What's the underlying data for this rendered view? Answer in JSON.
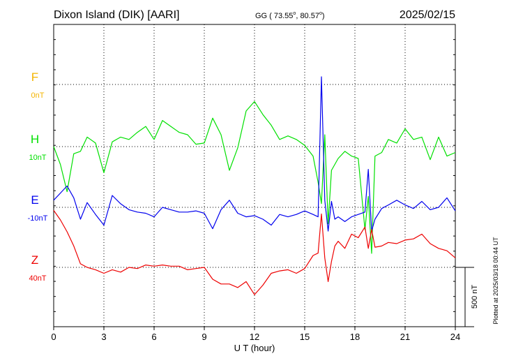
{
  "header": {
    "station": "Dixon Island (DIK)  [AARI]",
    "coords": "GG ( 73.55",
    "coords_sep": ",  80.57",
    "coords_end": ")",
    "deg_symbol": "o",
    "date": "2025/02/15"
  },
  "plotted_note": "Plotted at 2025/03/18 00:44 UT",
  "colors": {
    "F": "#f4b400",
    "H": "#00e000",
    "E": "#0000ee",
    "Z": "#ee0000",
    "grid": "#000000"
  },
  "chart_data": {
    "type": "line",
    "title": "Dixon Island (DIK)  [AARI]",
    "xlabel": "U T (hour)",
    "ylabel": "",
    "xlim": [
      0,
      24
    ],
    "x_ticks": [
      "0",
      "3",
      "6",
      "9",
      "12",
      "15",
      "18",
      "21",
      "24"
    ],
    "scale_bar": {
      "label": "500 nT",
      "nT": 500
    },
    "grid": true,
    "series": [
      {
        "name": "F",
        "offset_label": "0nT",
        "color": "#f4b400",
        "x": [],
        "y": []
      },
      {
        "name": "H",
        "offset_label": "10nT",
        "color": "#00e000",
        "x": [
          0,
          0.4,
          0.8,
          1.2,
          1.6,
          2.0,
          2.5,
          3.0,
          3.5,
          4.0,
          4.5,
          5.0,
          5.5,
          6.0,
          6.5,
          7.0,
          7.5,
          8.0,
          8.5,
          9.0,
          9.5,
          10.0,
          10.5,
          11.0,
          11.5,
          12.0,
          12.5,
          13.0,
          13.5,
          14.0,
          14.5,
          15.0,
          15.5,
          15.8,
          16.0,
          16.2,
          16.4,
          16.6,
          16.8,
          17.0,
          17.4,
          17.8,
          18.2,
          18.6,
          18.8,
          19.0,
          19.2,
          19.6,
          20.0,
          20.5,
          21.0,
          21.5,
          22.0,
          22.5,
          23.0,
          23.5,
          24.0
        ],
        "y": [
          0,
          -150,
          -380,
          -60,
          -40,
          80,
          30,
          -220,
          40,
          80,
          60,
          120,
          170,
          60,
          220,
          170,
          120,
          100,
          20,
          30,
          240,
          100,
          -200,
          -10,
          300,
          380,
          270,
          180,
          60,
          90,
          60,
          10,
          -80,
          -300,
          -480,
          100,
          -650,
          -200,
          -150,
          -100,
          -40,
          -80,
          -100,
          -700,
          -420,
          -900,
          -80,
          -50,
          60,
          30,
          150,
          60,
          80,
          -110,
          80,
          -80,
          -50
        ]
      },
      {
        "name": "E",
        "offset_label": "-10nT",
        "color": "#0000ee",
        "x": [
          0,
          0.4,
          0.8,
          1.2,
          1.6,
          2.0,
          2.5,
          3.0,
          3.5,
          4.0,
          4.5,
          5.0,
          5.5,
          6.0,
          6.5,
          7.0,
          7.5,
          8.0,
          8.5,
          9.0,
          9.5,
          10.0,
          10.5,
          11.0,
          11.5,
          12.0,
          12.5,
          13.0,
          13.5,
          14.0,
          14.5,
          15.0,
          15.5,
          15.8,
          16.0,
          16.2,
          16.4,
          16.6,
          16.8,
          17.0,
          17.4,
          17.8,
          18.2,
          18.6,
          18.8,
          19.0,
          19.2,
          19.6,
          20.0,
          20.5,
          21.0,
          21.5,
          22.0,
          22.5,
          23.0,
          23.5,
          24.0
        ],
        "y": [
          60,
          120,
          180,
          80,
          -100,
          40,
          -60,
          -150,
          100,
          30,
          -20,
          -40,
          -50,
          -80,
          0,
          -20,
          -40,
          -40,
          -30,
          -50,
          -180,
          -20,
          60,
          -50,
          -80,
          -70,
          -100,
          -150,
          -60,
          -80,
          -60,
          -30,
          -60,
          -80,
          1100,
          60,
          -200,
          50,
          -100,
          -80,
          -120,
          -80,
          -60,
          -40,
          320,
          -200,
          -100,
          -10,
          20,
          60,
          20,
          -10,
          50,
          -20,
          0,
          80,
          -30
        ]
      },
      {
        "name": "Z",
        "offset_label": "40nT",
        "color": "#ee0000",
        "x": [
          0,
          0.4,
          0.8,
          1.2,
          1.6,
          2.0,
          2.5,
          3.0,
          3.5,
          4.0,
          4.5,
          5.0,
          5.5,
          6.0,
          6.5,
          7.0,
          7.5,
          8.0,
          8.5,
          9.0,
          9.5,
          10.0,
          10.5,
          11.0,
          11.5,
          12.0,
          12.5,
          13.0,
          13.5,
          14.0,
          14.5,
          15.0,
          15.5,
          15.8,
          16.0,
          16.2,
          16.4,
          16.6,
          16.8,
          17.0,
          17.4,
          17.8,
          18.2,
          18.6,
          18.8,
          19.0,
          19.2,
          19.6,
          20.0,
          20.5,
          21.0,
          21.5,
          22.0,
          22.5,
          23.0,
          23.5,
          24.0
        ],
        "y": [
          480,
          400,
          300,
          180,
          30,
          0,
          -20,
          -50,
          -20,
          -40,
          0,
          -10,
          20,
          10,
          20,
          10,
          10,
          -20,
          -10,
          0,
          -100,
          -140,
          -140,
          -170,
          -120,
          -230,
          -150,
          -50,
          -30,
          -20,
          -50,
          -10,
          100,
          120,
          450,
          80,
          -120,
          50,
          180,
          220,
          160,
          280,
          250,
          340,
          160,
          320,
          170,
          180,
          210,
          200,
          230,
          240,
          280,
          200,
          160,
          140,
          80
        ]
      }
    ]
  }
}
